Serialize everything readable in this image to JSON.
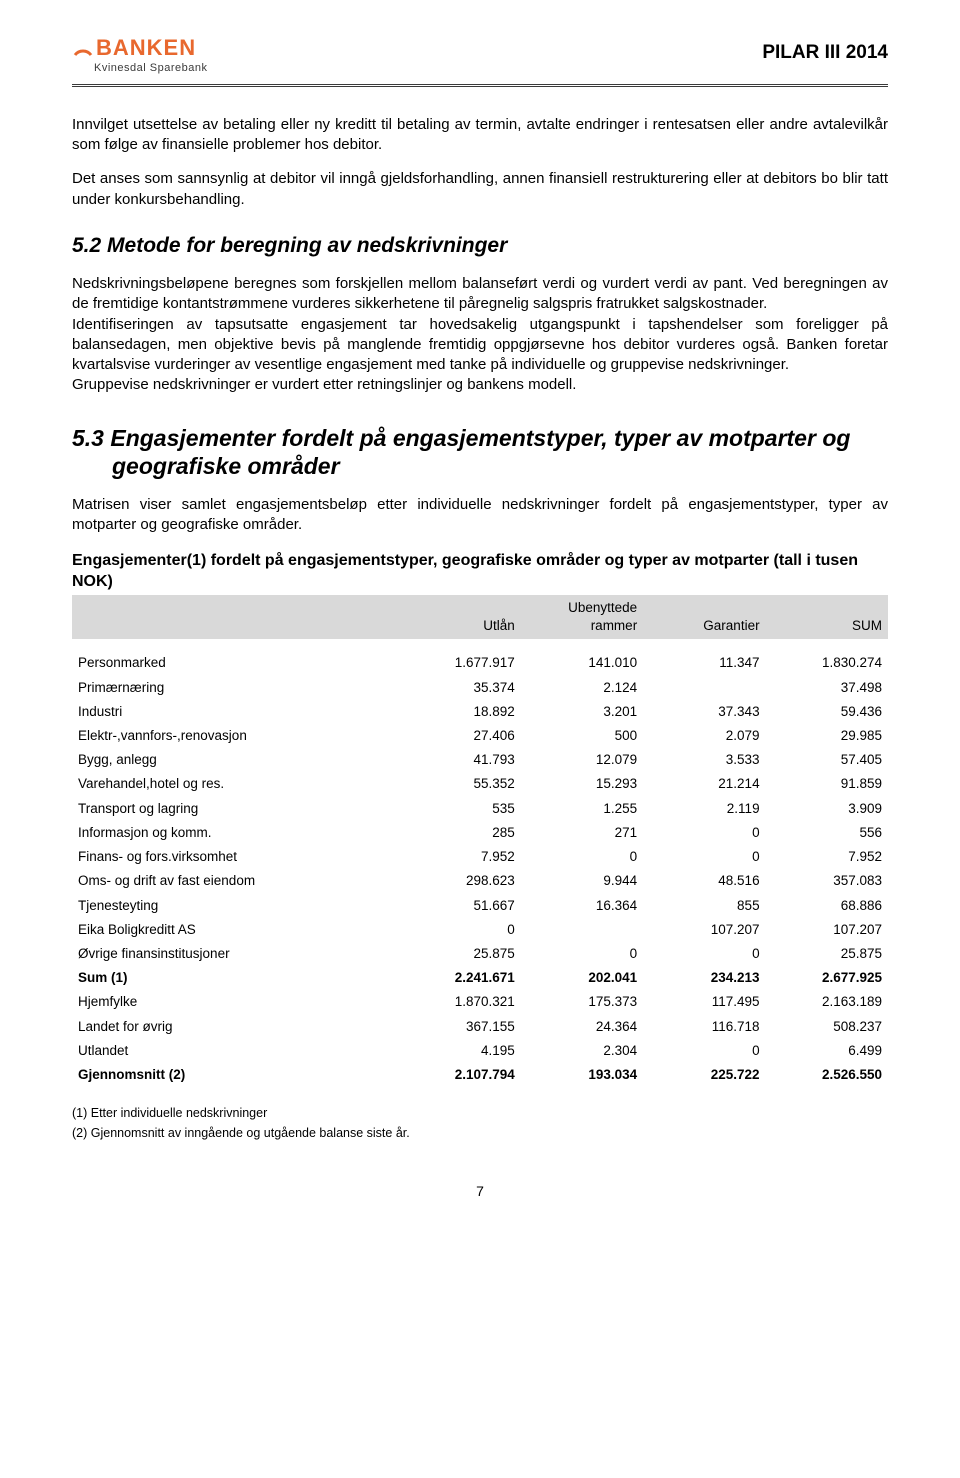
{
  "header": {
    "logo_text": "BANKEN",
    "logo_sub": "Kvinesdal Sparebank",
    "doc_title": "PILAR III 2014"
  },
  "paragraphs": {
    "p1": "Innvilget utsettelse av betaling eller ny kreditt til betaling av termin, avtalte endringer i rentesatsen eller andre avtalevilkår som følge av finansielle problemer hos debitor.",
    "p2": "Det anses som sannsynlig at debitor vil inngå gjeldsforhandling, annen finansiell restrukturering eller at debitors bo blir tatt under konkursbehandling.",
    "p3": "Nedskrivningsbeløpene beregnes som forskjellen mellom balanseført verdi og vurdert verdi av pant. Ved beregningen av de fremtidige kontantstrømmene vurderes sikkerhetene til påregnelig salgspris fratrukket salgskostnader.",
    "p4": "Identifiseringen av tapsutsatte engasjement tar hovedsakelig utgangspunkt i tapshendelser som foreligger på balansedagen, men objektive bevis på manglende fremtidig oppgjørsevne hos debitor vurderes også. Banken foretar kvartalsvise vurderinger av vesentlige engasjement med tanke på individuelle og gruppevise nedskrivninger.",
    "p5": "Gruppevise nedskrivninger er vurdert etter retningslinjer og bankens modell.",
    "p6": "Matrisen viser samlet engasjementsbeløp etter individuelle nedskrivninger fordelt på engasjementstyper, typer av motparter og geografiske områder."
  },
  "sections": {
    "s52": "5.2  Metode for beregning av nedskrivninger",
    "s53_l1": "5.3  Engasjementer fordelt på engasjementstyper, typer av motparter og",
    "s53_l2": "geografiske områder"
  },
  "table": {
    "title": "Engasjementer(1) fordelt på engasjementstyper, geografiske områder og typer av motparter (tall i tusen NOK)",
    "columns": [
      "",
      "Utlån",
      "Ubenyttede rammer",
      "Garantier",
      "SUM"
    ],
    "rows": [
      {
        "label": "Personmarked",
        "c": [
          "1.677.917",
          "141.010",
          "11.347",
          "1.830.274"
        ]
      },
      {
        "label": "Primærnæring",
        "c": [
          "35.374",
          "2.124",
          "",
          "37.498"
        ]
      },
      {
        "label": "Industri",
        "c": [
          "18.892",
          "3.201",
          "37.343",
          "59.436"
        ]
      },
      {
        "label": "Elektr-,vannfors-,renovasjon",
        "c": [
          "27.406",
          "500",
          "2.079",
          "29.985"
        ]
      },
      {
        "label": "Bygg, anlegg",
        "c": [
          "41.793",
          "12.079",
          "3.533",
          "57.405"
        ]
      },
      {
        "label": "Varehandel,hotel og res.",
        "c": [
          "55.352",
          "15.293",
          "21.214",
          "91.859"
        ]
      },
      {
        "label": "Transport og lagring",
        "c": [
          "535",
          "1.255",
          "2.119",
          "3.909"
        ]
      },
      {
        "label": "Informasjon og komm.",
        "c": [
          "285",
          "271",
          "0",
          "556"
        ]
      },
      {
        "label": "Finans- og fors.virksomhet",
        "c": [
          "7.952",
          "0",
          "0",
          "7.952"
        ]
      },
      {
        "label": "Oms- og drift av fast eiendom",
        "c": [
          "298.623",
          "9.944",
          "48.516",
          "357.083"
        ]
      },
      {
        "label": "Tjenesteyting",
        "c": [
          "51.667",
          "16.364",
          "855",
          "68.886"
        ]
      },
      {
        "label": "Eika Boligkreditt AS",
        "c": [
          "0",
          "",
          "107.207",
          "107.207"
        ]
      },
      {
        "label": "Øvrige finansinstitusjoner",
        "c": [
          "25.875",
          "0",
          "0",
          "25.875"
        ]
      },
      {
        "label": "Sum (1)",
        "c": [
          "2.241.671",
          "202.041",
          "234.213",
          "2.677.925"
        ],
        "bold": true
      },
      {
        "label": "Hjemfylke",
        "c": [
          "1.870.321",
          "175.373",
          "117.495",
          "2.163.189"
        ]
      },
      {
        "label": "Landet for øvrig",
        "c": [
          "367.155",
          "24.364",
          "116.718",
          "508.237"
        ]
      },
      {
        "label": "Utlandet",
        "c": [
          "4.195",
          "2.304",
          "0",
          "6.499"
        ]
      },
      {
        "label": "Gjennomsnitt (2)",
        "c": [
          "2.107.794",
          "193.034",
          "225.722",
          "2.526.550"
        ],
        "bold": true
      }
    ]
  },
  "footnotes": {
    "f1": "(1) Etter individuelle nedskrivninger",
    "f2": "(2) Gjennomsnitt av inngående og utgående balanse siste år."
  },
  "page_number": "7",
  "colors": {
    "brand_orange": "#e8682e",
    "header_gray": "#d9d9d9"
  }
}
